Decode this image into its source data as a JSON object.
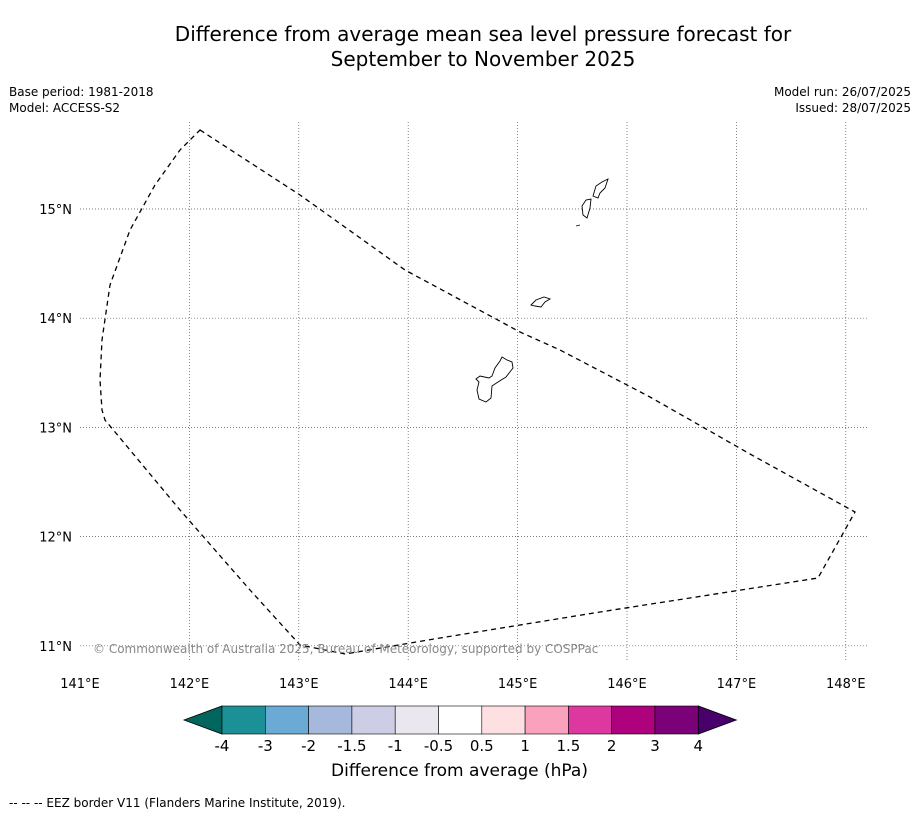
{
  "title_line1": "Difference from average mean sea level pressure forecast for",
  "title_line2": "September to November 2025",
  "base_period": "Base period: 1981-2018",
  "model": "Model: ACCESS-S2",
  "model_run": "Model run: 26/07/2025",
  "issued": "Issued: 28/07/2025",
  "copyright": "© Commonwealth of Australia 2025, Bureau of Meteorology, supported by COSPPac",
  "footer": "--  --  -- EEZ border V11 (Flanders Marine Institute, 2019).",
  "map": {
    "lon_ticks": [
      "141°E",
      "142°E",
      "143°E",
      "144°E",
      "145°E",
      "146°E",
      "147°E",
      "148°E"
    ],
    "lat_ticks": [
      "15°N",
      "14°N",
      "13°N",
      "12°N",
      "11°N"
    ],
    "lon_range": [
      141,
      148.2
    ],
    "lat_range": [
      10.8,
      15.8
    ]
  },
  "colorbar": {
    "title": "Difference from average (hPa)",
    "tick_labels": [
      "-4",
      "-3",
      "-2",
      "-1.5",
      "-1",
      "-0.5",
      "0.5",
      "1",
      "1.5",
      "2",
      "3",
      "4"
    ],
    "colors": [
      "#01665e",
      "#1b9096",
      "#6aaad5",
      "#a6b9dc",
      "#cdcde5",
      "#eae8ee",
      "#ffffff",
      "#fedfe2",
      "#f9a1bd",
      "#dd38a0",
      "#ad017e",
      "#7a0177",
      "#49006a"
    ]
  }
}
